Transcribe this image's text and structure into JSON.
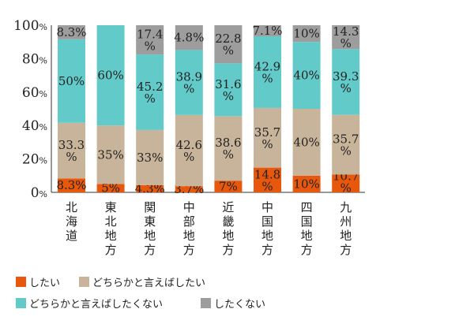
{
  "chart_data": {
    "type": "bar",
    "stacked": true,
    "categories": [
      "北海道",
      "東北地方",
      "関東地方",
      "中部地方",
      "近畿地方",
      "中国地方",
      "四国地方",
      "九州地方"
    ],
    "ylim": [
      0,
      100
    ],
    "yticks": [
      "0%",
      "20%",
      "40%",
      "60%",
      "80%",
      "100%"
    ],
    "series": [
      {
        "name": "したい",
        "color": "#e8580c",
        "values": [
          8.3,
          5,
          4.3,
          3.7,
          7,
          14.8,
          10,
          10.7
        ]
      },
      {
        "name": "どちらかと言えばしたい",
        "color": "#c8b49a",
        "values": [
          33.3,
          35,
          33,
          42.6,
          38.6,
          35.7,
          40,
          35.7
        ]
      },
      {
        "name": "どちらかと言えばしたくない",
        "color": "#62cbc9",
        "values": [
          50,
          60,
          45.2,
          38.9,
          31.6,
          42.9,
          40,
          39.3
        ]
      },
      {
        "name": "したくない",
        "color": "#9d9d9d",
        "values": [
          8.3,
          null,
          17.4,
          4.8,
          22.8,
          7.1,
          10,
          14.3
        ]
      }
    ],
    "legend_placement": "bottom"
  }
}
